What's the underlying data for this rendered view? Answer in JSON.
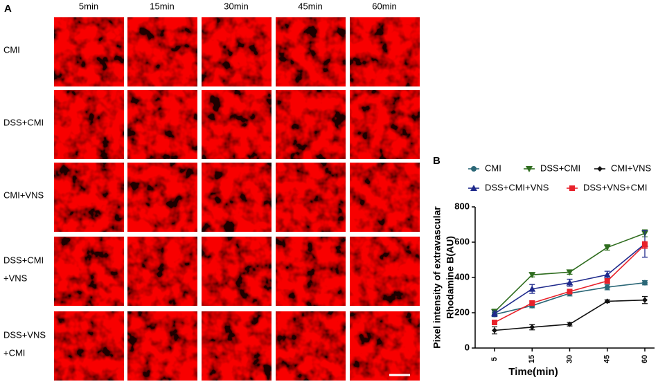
{
  "panel_a": {
    "letter": "A",
    "columns": [
      "5min",
      "15min",
      "30min",
      "45min",
      "60min"
    ],
    "rows": [
      [
        "CMI"
      ],
      [
        "DSS+CMI"
      ],
      [
        "CMI+VNS"
      ],
      [
        "DSS+CMI",
        "+VNS"
      ],
      [
        "DSS+VNS",
        "+CMI"
      ]
    ]
  },
  "chart_data": {
    "type": "line",
    "letter": "B",
    "ylabel": [
      "Pixel intensity of extravascular",
      "Rhodamine B(AU)"
    ],
    "xlabel": "Time(min)",
    "categories": [
      "5",
      "15",
      "30",
      "45",
      "60"
    ],
    "ylim": [
      0,
      800
    ],
    "yticks": [
      0,
      200,
      400,
      600,
      800
    ],
    "series": [
      {
        "name": "CMI",
        "color": "#2b6777",
        "marker": "circle",
        "values": [
          190,
          240,
          310,
          345,
          370
        ],
        "errors": [
          12,
          12,
          15,
          15,
          12
        ]
      },
      {
        "name": "DSS+CMI",
        "color": "#2f6d1f",
        "marker": "triangle-down",
        "values": [
          205,
          415,
          430,
          570,
          650
        ],
        "errors": [
          15,
          12,
          12,
          15,
          20
        ]
      },
      {
        "name": "CMI+VNS",
        "color": "#111111",
        "marker": "diamond",
        "values": [
          100,
          118,
          135,
          265,
          272
        ],
        "errors": [
          20,
          15,
          10,
          8,
          20
        ]
      },
      {
        "name": "DSS+CMI+VNS",
        "color": "#1f2a8c",
        "marker": "triangle-up",
        "values": [
          195,
          335,
          370,
          415,
          590
        ],
        "errors": [
          15,
          25,
          20,
          20,
          75
        ]
      },
      {
        "name": "DSS+VNS+CMI",
        "color": "#e8212a",
        "marker": "square",
        "values": [
          145,
          255,
          320,
          380,
          585
        ],
        "errors": [
          12,
          12,
          12,
          12,
          20
        ]
      }
    ]
  }
}
